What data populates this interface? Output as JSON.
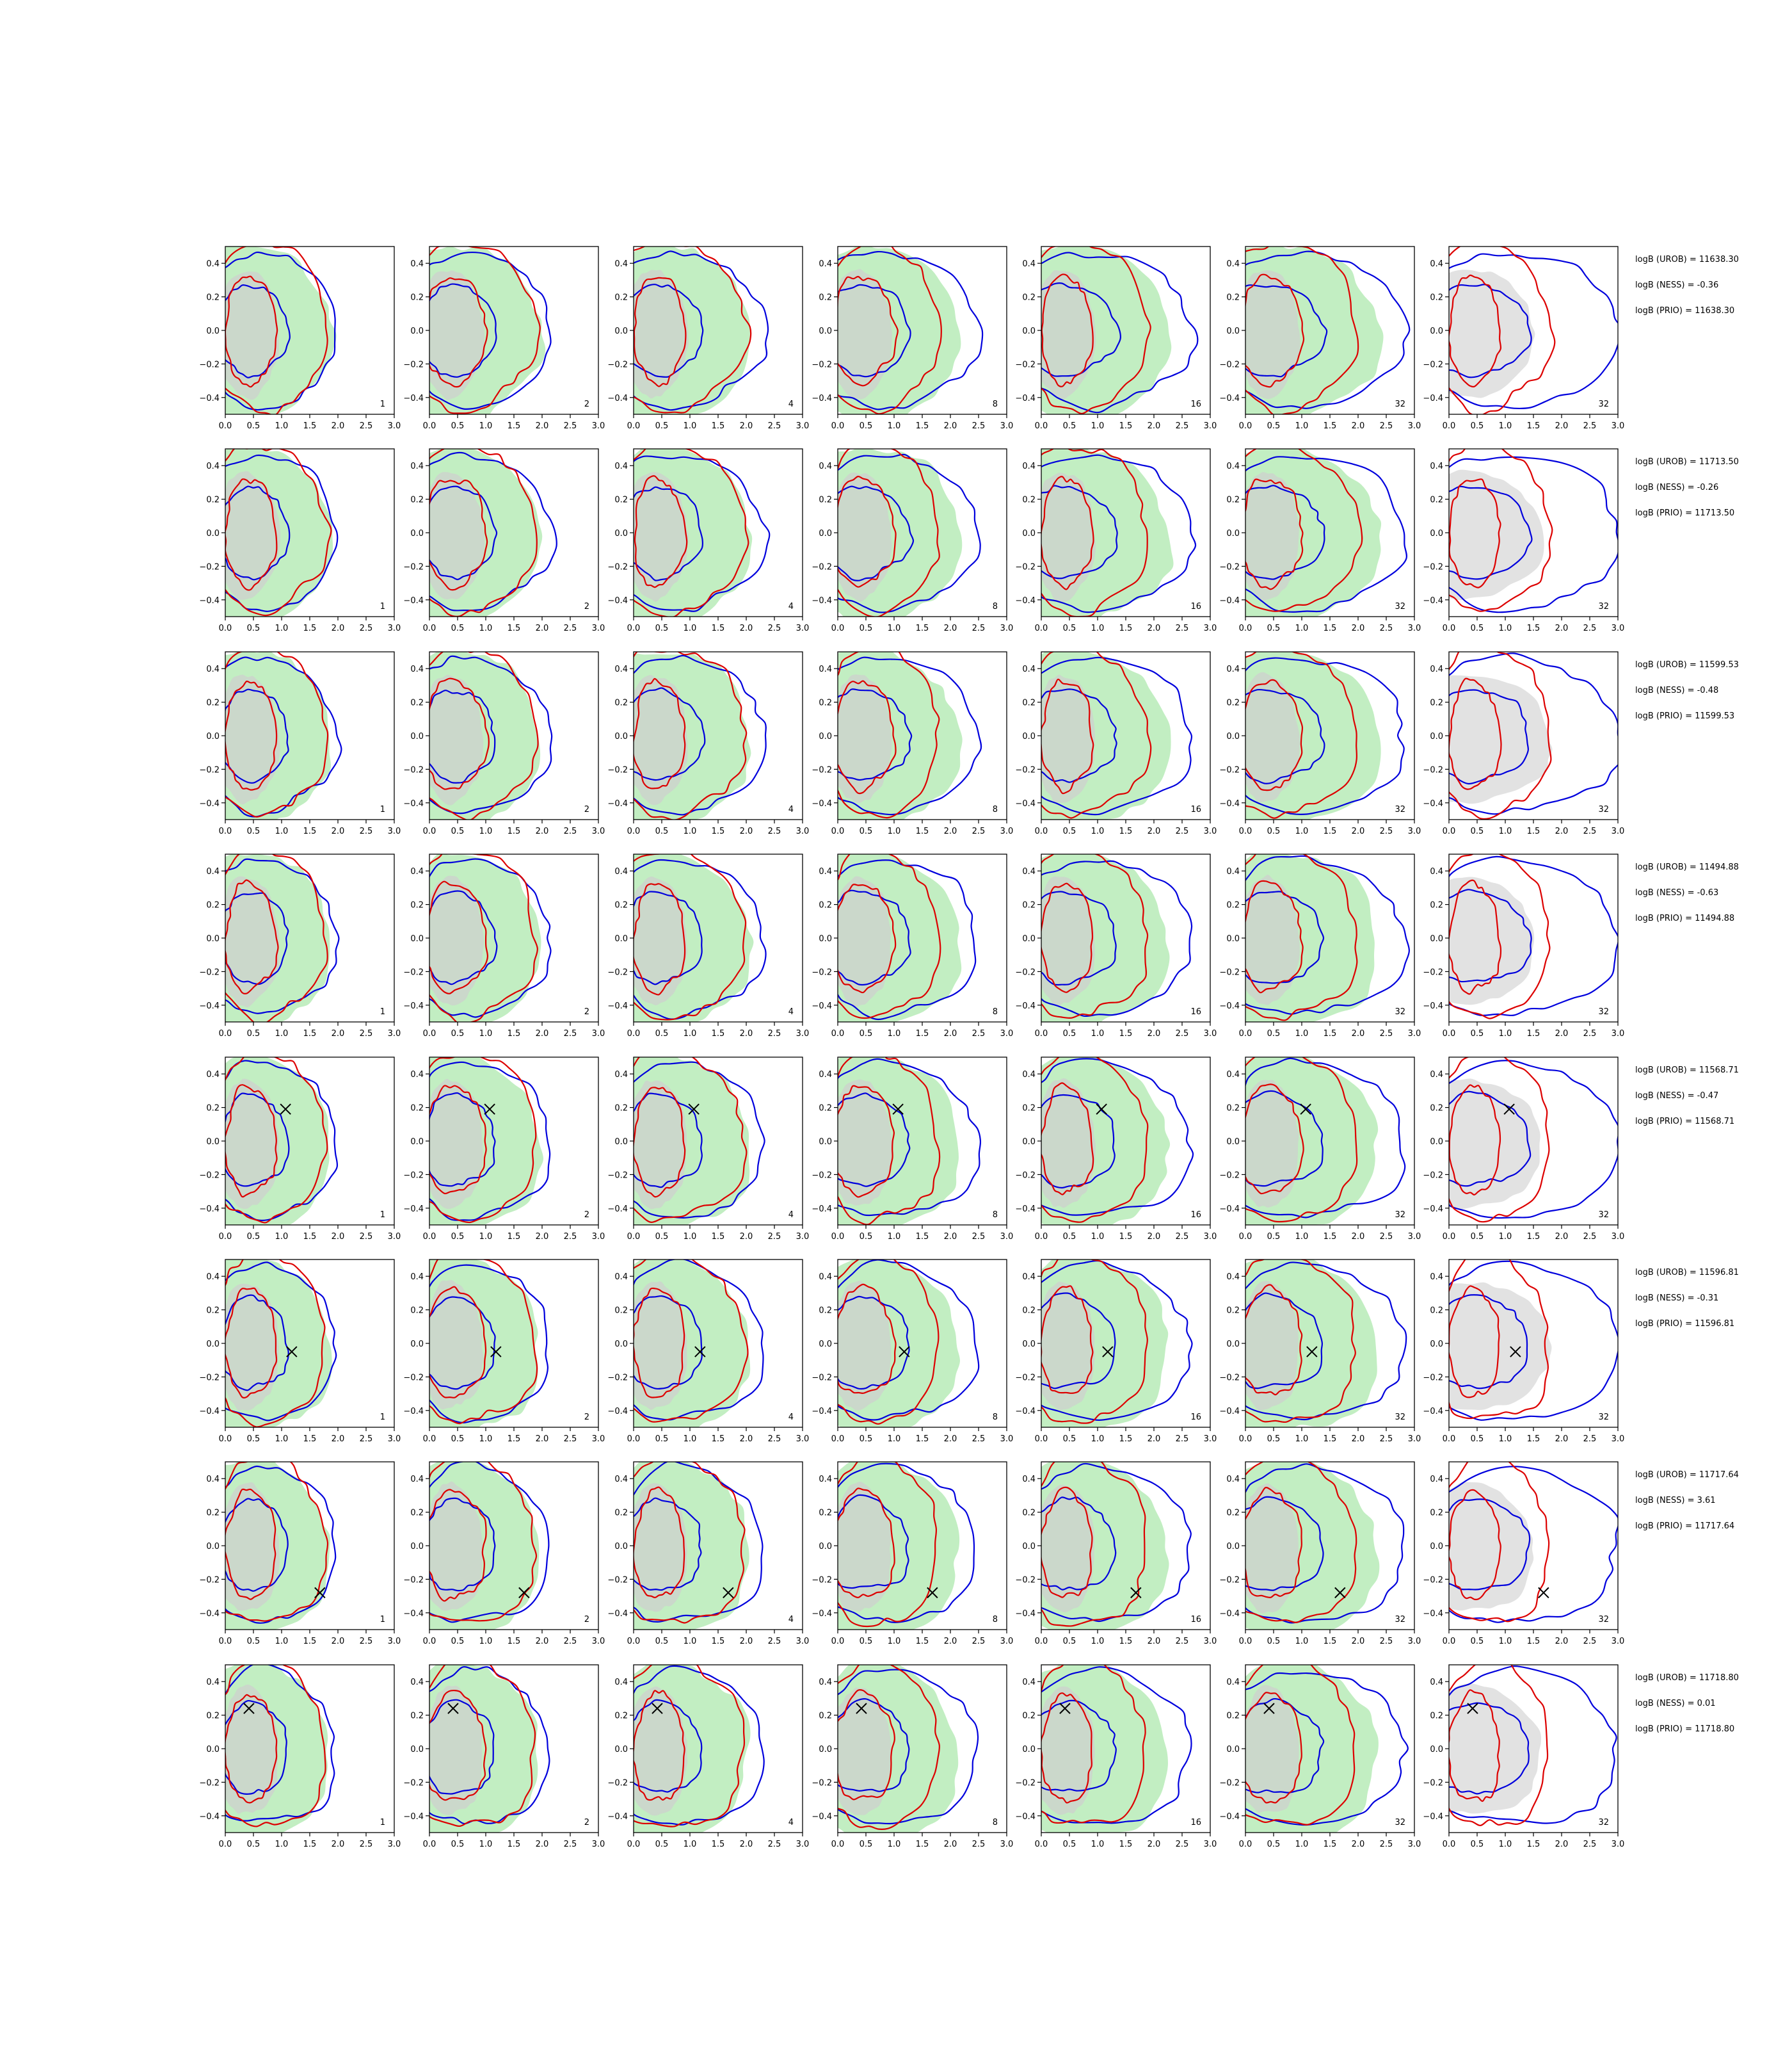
{
  "figure": {
    "colors": {
      "filled_green": "#90e090",
      "filled_grey": "#cfcfcf",
      "contour_blue": "#0000dd",
      "contour_red": "#dd0000",
      "marker": "#000000"
    },
    "panel_corner_labels": [
      "1",
      "2",
      "4",
      "8",
      "16",
      "32",
      "32"
    ],
    "x_ticks": [
      "0.0",
      "0.5",
      "1.0",
      "1.5",
      "2.0",
      "2.5",
      "3.0"
    ],
    "y_ticks": [
      "0.4",
      "0.2",
      "0.0",
      "−0.2",
      "−0.4"
    ]
  },
  "chart_data": {
    "type": "contour grid",
    "rows": 8,
    "cols": 7,
    "xlim": [
      0,
      3
    ],
    "ylim": [
      -0.5,
      0.5
    ],
    "rows_data": [
      {
        "stats": [
          "logB (UROB) = 11638.30",
          "logB (NESS) = -0.36",
          "logB (PRIO) = 11638.30"
        ],
        "marker": null
      },
      {
        "stats": [
          "logB (UROB) = 11713.50",
          "logB (NESS) = -0.26",
          "logB (PRIO) = 11713.50"
        ],
        "marker": null
      },
      {
        "stats": [
          "logB (UROB) = 11599.53",
          "logB (NESS) = -0.48",
          "logB (PRIO) = 11599.53"
        ],
        "marker": null
      },
      {
        "stats": [
          "logB (UROB) = 11494.88",
          "logB (NESS) = -0.63",
          "logB (PRIO) = 11494.88"
        ],
        "marker": null
      },
      {
        "stats": [
          "logB (UROB) = 11568.71",
          "logB (NESS) = -0.47",
          "logB (PRIO) = 11568.71"
        ],
        "marker": [
          1.07,
          0.19
        ]
      },
      {
        "stats": [
          "logB (UROB) = 11596.81",
          "logB (NESS) = -0.31",
          "logB (PRIO) = 11596.81"
        ],
        "marker": [
          1.18,
          -0.05
        ]
      },
      {
        "stats": [
          "logB (UROB) = 11717.64",
          "logB (NESS) = 3.61",
          "logB (PRIO) = 11717.64"
        ],
        "marker": [
          1.68,
          -0.28
        ]
      },
      {
        "stats": [
          "logB (UROB) = 11718.80",
          "logB (NESS) = 0.01",
          "logB (PRIO) = 11718.80"
        ],
        "marker": [
          0.42,
          0.24
        ]
      }
    ]
  }
}
